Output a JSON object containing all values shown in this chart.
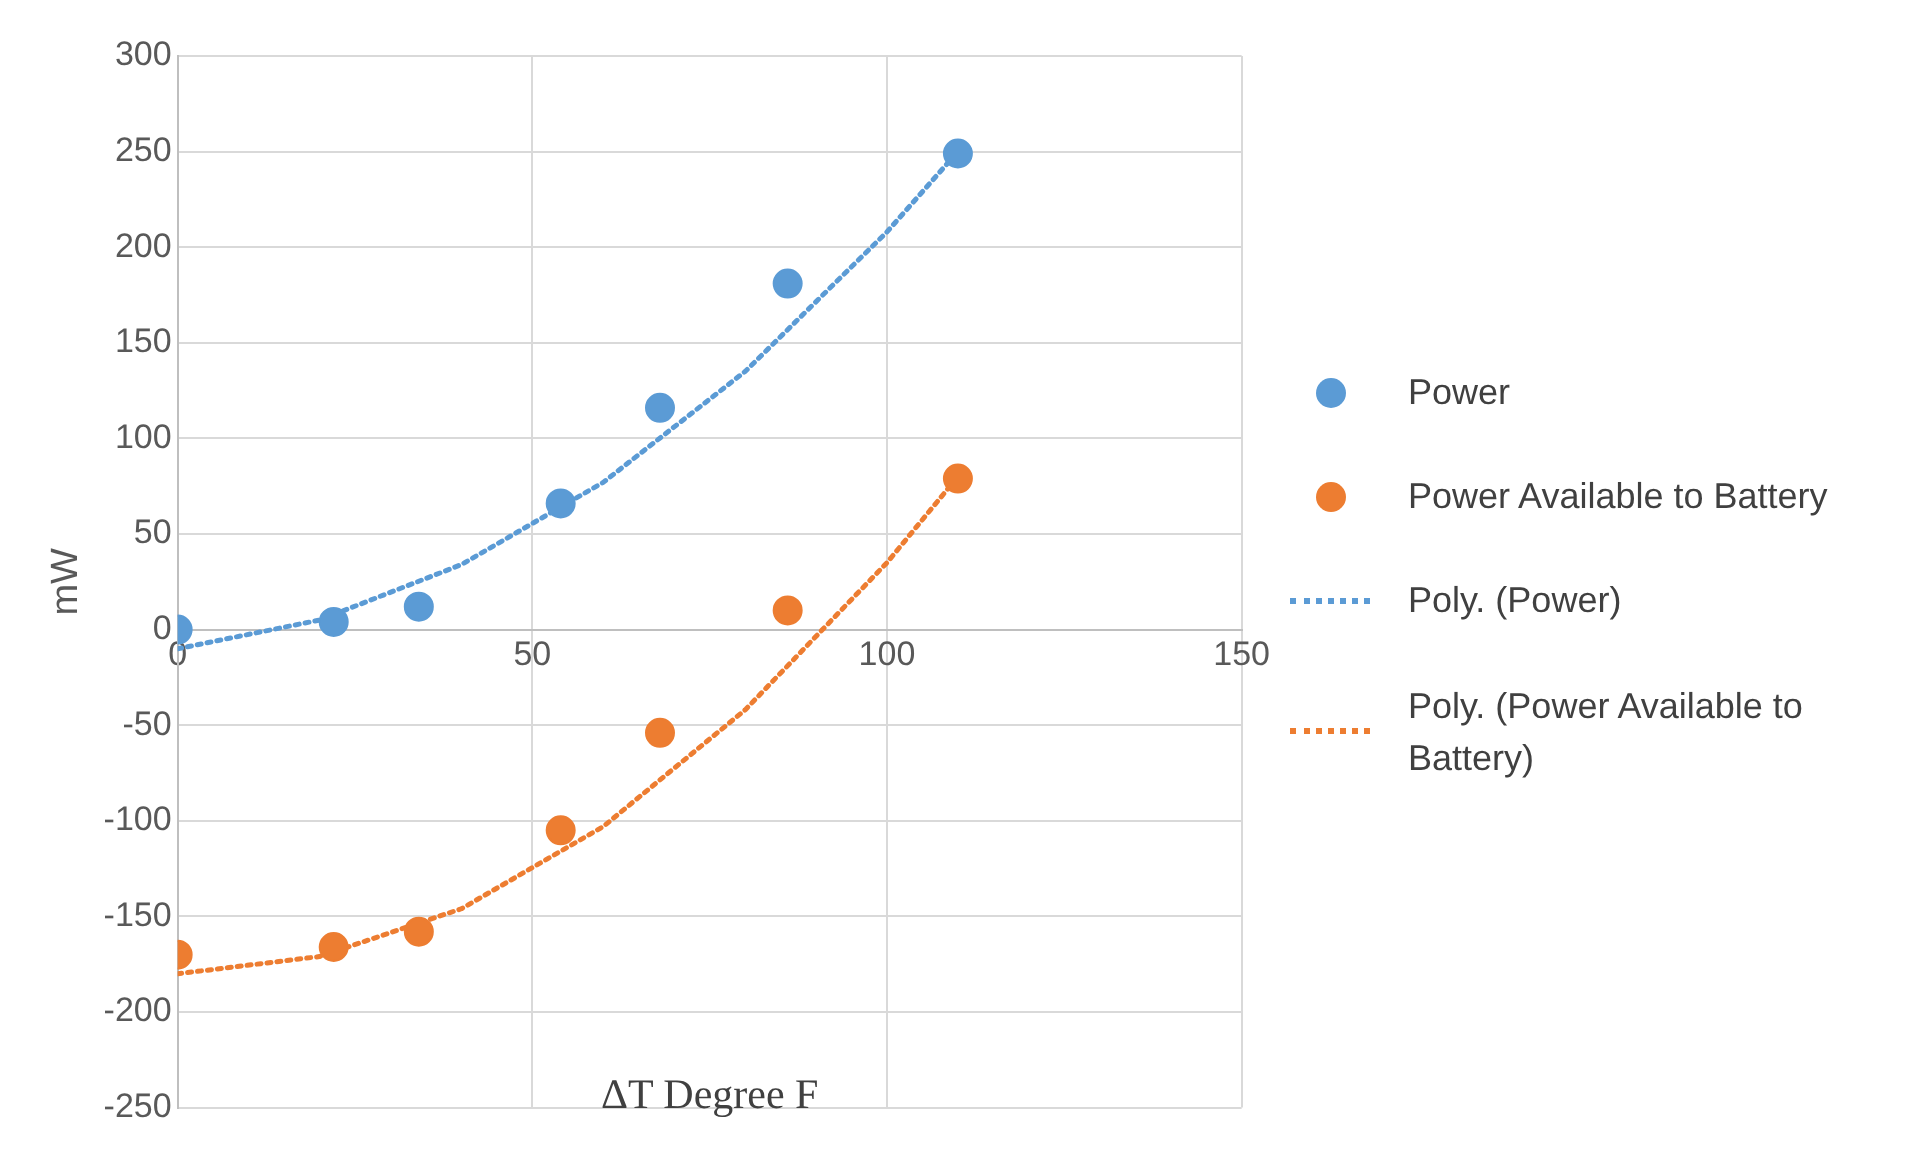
{
  "chart_data": {
    "type": "scatter",
    "xlabel": "ΔT Degree F",
    "ylabel": "mW",
    "xlim": [
      0,
      150
    ],
    "xticks": [
      0,
      50,
      100,
      150
    ],
    "ylim": [
      -250,
      300
    ],
    "yticks": [
      -250,
      -200,
      -150,
      -100,
      -50,
      0,
      50,
      100,
      150,
      200,
      250,
      300
    ],
    "grid": true,
    "legend": "right",
    "marker": "circle",
    "series": [
      {
        "name": "Power",
        "type": "scatter",
        "color": "#5b9bd5",
        "x": [
          0,
          22,
          34,
          54,
          68,
          86,
          110
        ],
        "values": [
          0,
          4,
          12,
          66,
          116,
          181,
          249
        ]
      },
      {
        "name": "Power Available to Battery",
        "type": "scatter",
        "color": "#ed7d31",
        "x": [
          0,
          22,
          34,
          54,
          68,
          86,
          110
        ],
        "values": [
          -170,
          -166,
          -158,
          -105,
          -54,
          10,
          79
        ]
      },
      {
        "name": "Poly. (Power)",
        "type": "line",
        "color": "#5b9bd5",
        "marker": "none",
        "line_style": "dotted",
        "x": [
          0,
          20,
          40,
          60,
          80,
          100,
          110
        ],
        "values": [
          -10,
          5,
          34,
          77,
          135,
          208,
          250
        ]
      },
      {
        "name": "Poly. (Power Available to Battery)",
        "type": "line",
        "color": "#ed7d31",
        "marker": "none",
        "line_style": "dotted",
        "x": [
          0,
          20,
          40,
          60,
          80,
          100,
          110
        ],
        "values": [
          -180,
          -171,
          -146,
          -103,
          -42,
          35,
          80
        ]
      }
    ]
  }
}
